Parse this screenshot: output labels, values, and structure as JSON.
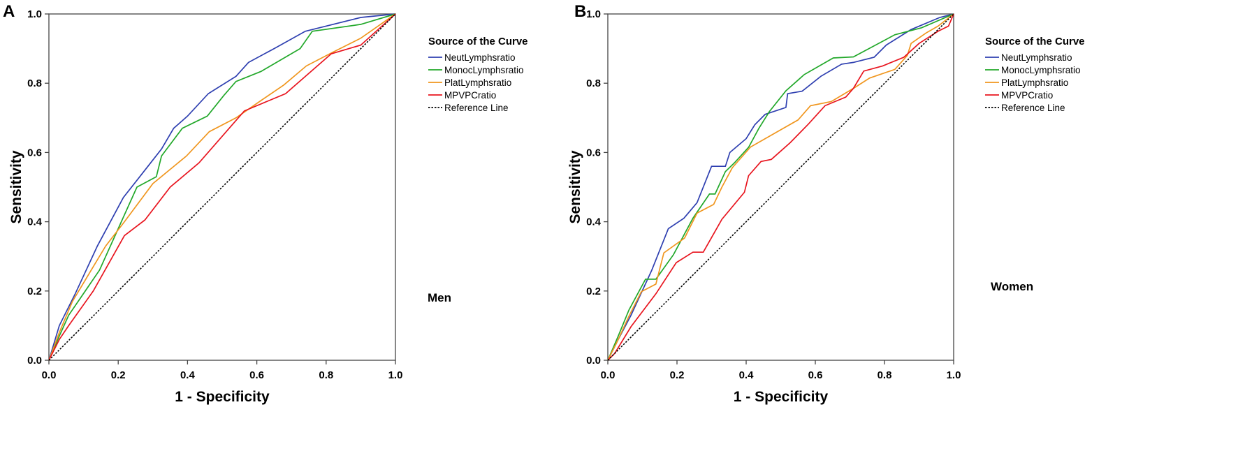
{
  "chart_data": [
    {
      "type": "line",
      "panel_label": "A",
      "group_label": "Men",
      "title": "",
      "xlabel": "1 - Specificity",
      "ylabel": "Sensitivity",
      "xlim": [
        0,
        1
      ],
      "ylim": [
        0,
        1
      ],
      "xticks": [
        "0.0",
        "0.2",
        "0.4",
        "0.6",
        "0.8",
        "1.0"
      ],
      "yticks": [
        "0.0",
        "0.2",
        "0.4",
        "0.6",
        "0.8",
        "1.0"
      ],
      "grid": false,
      "legend_title": "Source of the Curve",
      "legend_position": "right",
      "series": [
        {
          "name": "NeutLymphsratio",
          "color": "#2e3fb0",
          "dash": false,
          "x": [
            0,
            0.03,
            0.075,
            0.14,
            0.215,
            0.27,
            0.325,
            0.36,
            0.4,
            0.46,
            0.54,
            0.576,
            0.65,
            0.74,
            0.9,
            1
          ],
          "y": [
            0,
            0.1,
            0.19,
            0.33,
            0.47,
            0.54,
            0.61,
            0.67,
            0.705,
            0.77,
            0.82,
            0.86,
            0.9,
            0.95,
            0.99,
            1
          ]
        },
        {
          "name": "MonocLymphsratio",
          "color": "#22a82a",
          "dash": false,
          "x": [
            0,
            0.03,
            0.057,
            0.146,
            0.254,
            0.31,
            0.325,
            0.385,
            0.457,
            0.505,
            0.54,
            0.612,
            0.725,
            0.76,
            0.9,
            1
          ],
          "y": [
            0,
            0.07,
            0.13,
            0.26,
            0.5,
            0.53,
            0.59,
            0.67,
            0.705,
            0.765,
            0.805,
            0.834,
            0.9,
            0.95,
            0.97,
            1
          ]
        },
        {
          "name": "PlatLymphsratio",
          "color": "#f0961e",
          "dash": false,
          "x": [
            0,
            0.03,
            0.068,
            0.164,
            0.218,
            0.3,
            0.397,
            0.463,
            0.54,
            0.612,
            0.678,
            0.743,
            0.82,
            0.9,
            1
          ],
          "y": [
            0,
            0.08,
            0.17,
            0.33,
            0.4,
            0.51,
            0.59,
            0.66,
            0.7,
            0.75,
            0.795,
            0.85,
            0.89,
            0.93,
            1
          ]
        },
        {
          "name": "MPVPCratio",
          "color": "#e8141e",
          "dash": false,
          "x": [
            0,
            0.03,
            0.057,
            0.128,
            0.218,
            0.277,
            0.35,
            0.433,
            0.516,
            0.564,
            0.683,
            0.815,
            0.9,
            1
          ],
          "y": [
            0,
            0.06,
            0.1,
            0.2,
            0.36,
            0.405,
            0.5,
            0.57,
            0.665,
            0.72,
            0.77,
            0.885,
            0.91,
            1
          ]
        },
        {
          "name": "Reference Line",
          "color": "#000000",
          "dash": true,
          "x": [
            0,
            1
          ],
          "y": [
            0,
            1
          ]
        }
      ]
    },
    {
      "type": "line",
      "panel_label": "B",
      "group_label": "Women",
      "title": "",
      "xlabel": "1 - Specificity",
      "ylabel": "Sensitivity",
      "xlim": [
        0,
        1
      ],
      "ylim": [
        0,
        1
      ],
      "xticks": [
        "0.0",
        "0.2",
        "0.4",
        "0.6",
        "0.8",
        "1.0"
      ],
      "yticks": [
        "0.0",
        "0.2",
        "0.4",
        "0.6",
        "0.8",
        "1.0"
      ],
      "grid": false,
      "legend_title": "Source of the Curve",
      "legend_position": "right",
      "series": [
        {
          "name": "NeutLymphsratio",
          "color": "#2e3fb0",
          "dash": false,
          "x": [
            0,
            0.03,
            0.067,
            0.127,
            0.175,
            0.22,
            0.258,
            0.3,
            0.34,
            0.353,
            0.4,
            0.425,
            0.455,
            0.515,
            0.52,
            0.562,
            0.616,
            0.676,
            0.71,
            0.77,
            0.805,
            0.877,
            0.96,
            1
          ],
          "y": [
            0,
            0.06,
            0.13,
            0.26,
            0.38,
            0.41,
            0.455,
            0.56,
            0.56,
            0.6,
            0.64,
            0.68,
            0.71,
            0.73,
            0.77,
            0.777,
            0.82,
            0.855,
            0.86,
            0.875,
            0.91,
            0.955,
            0.99,
            1
          ]
        },
        {
          "name": "MonocLymphsratio",
          "color": "#22a82a",
          "dash": false,
          "x": [
            0,
            0.03,
            0.061,
            0.109,
            0.139,
            0.19,
            0.246,
            0.294,
            0.31,
            0.34,
            0.366,
            0.407,
            0.437,
            0.467,
            0.515,
            0.568,
            0.652,
            0.71,
            0.83,
            0.907,
            1
          ],
          "y": [
            0,
            0.07,
            0.145,
            0.234,
            0.234,
            0.305,
            0.41,
            0.48,
            0.48,
            0.545,
            0.57,
            0.615,
            0.67,
            0.718,
            0.778,
            0.825,
            0.873,
            0.876,
            0.94,
            0.96,
            1
          ]
        },
        {
          "name": "PlatLymphsratio",
          "color": "#f0961e",
          "dash": false,
          "x": [
            0,
            0.03,
            0.061,
            0.097,
            0.139,
            0.162,
            0.222,
            0.258,
            0.306,
            0.33,
            0.36,
            0.413,
            0.497,
            0.55,
            0.586,
            0.646,
            0.71,
            0.757,
            0.83,
            0.866,
            0.877,
            0.92,
            0.955,
            1
          ],
          "y": [
            0,
            0.06,
            0.127,
            0.198,
            0.22,
            0.31,
            0.353,
            0.425,
            0.45,
            0.5,
            0.556,
            0.616,
            0.664,
            0.694,
            0.735,
            0.747,
            0.785,
            0.815,
            0.84,
            0.88,
            0.915,
            0.945,
            0.965,
            1
          ]
        },
        {
          "name": "MPVPCratio",
          "color": "#e8141e",
          "dash": false,
          "x": [
            0,
            0.02,
            0.067,
            0.139,
            0.198,
            0.246,
            0.276,
            0.33,
            0.395,
            0.407,
            0.443,
            0.473,
            0.527,
            0.58,
            0.628,
            0.688,
            0.71,
            0.74,
            0.795,
            0.856,
            0.9,
            0.955,
            0.985,
            1
          ],
          "y": [
            0,
            0.02,
            0.097,
            0.192,
            0.282,
            0.312,
            0.312,
            0.407,
            0.485,
            0.533,
            0.574,
            0.58,
            0.628,
            0.682,
            0.735,
            0.76,
            0.785,
            0.835,
            0.85,
            0.875,
            0.915,
            0.95,
            0.965,
            1
          ]
        },
        {
          "name": "Reference Line",
          "color": "#000000",
          "dash": true,
          "x": [
            0,
            1
          ],
          "y": [
            0,
            1
          ]
        }
      ]
    }
  ]
}
